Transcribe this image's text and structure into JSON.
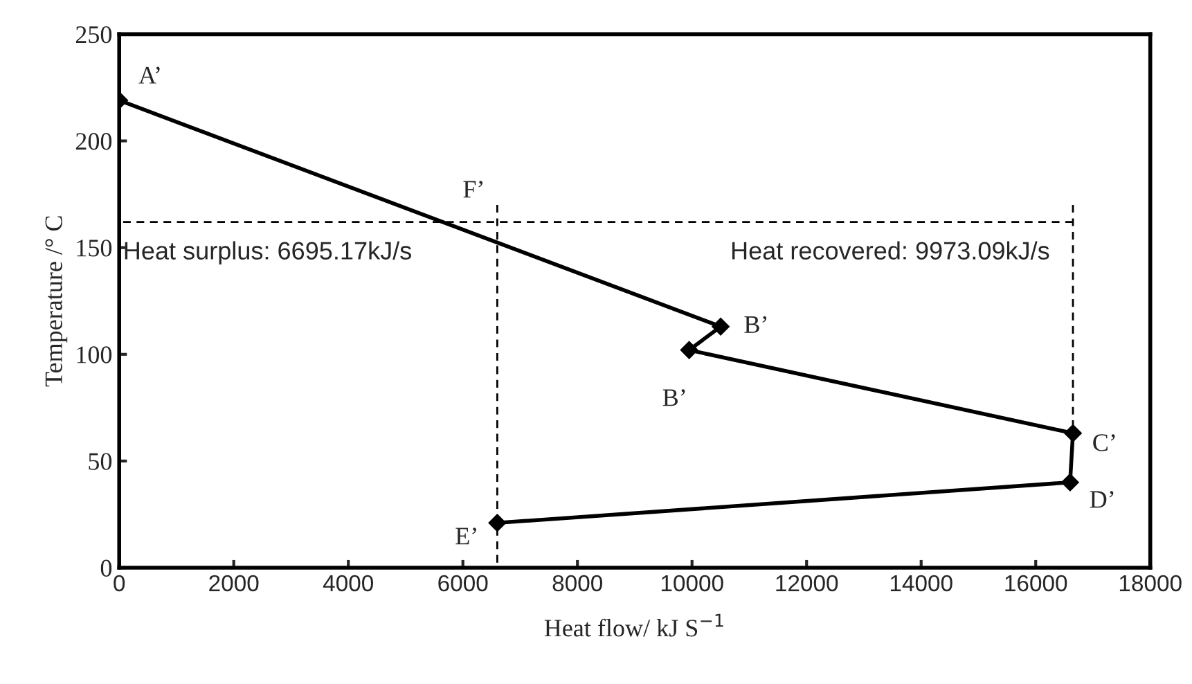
{
  "chart_data": {
    "type": "line",
    "xlabel": "Heat flow/ kJ S$^{−1}$",
    "ylabel": "Temperature /° C",
    "xlim": [
      0,
      18000
    ],
    "ylim": [
      0,
      250
    ],
    "xticks": [
      0,
      2000,
      4000,
      6000,
      8000,
      10000,
      12000,
      14000,
      16000,
      18000
    ],
    "yticks": [
      0,
      50,
      100,
      150,
      200,
      250
    ],
    "grid": false,
    "legend": false,
    "series": [
      {
        "color": "#000000",
        "x": [
          0,
          10500,
          9950,
          16650,
          16600,
          6600
        ],
        "values": [
          219,
          113,
          102,
          63,
          40,
          21
        ],
        "marker": "diamond",
        "line_style": "solid"
      },
      {
        "color": "#000000",
        "x": [
          0,
          16650
        ],
        "values": [
          162,
          162
        ],
        "marker": "none",
        "line_style": "dashed"
      },
      {
        "color": "#000000",
        "x": [
          6600,
          6600
        ],
        "values": [
          0,
          170
        ],
        "marker": "none",
        "line_style": "dashed"
      },
      {
        "color": "#000000",
        "x": [
          16650,
          16650
        ],
        "values": [
          63,
          170
        ],
        "marker": "none",
        "line_style": "dashed"
      }
    ],
    "annotations": [
      {
        "text": "A’",
        "x": 0,
        "y": 219
      },
      {
        "text": "B’",
        "x": 10500,
        "y": 113
      },
      {
        "text": "B’",
        "x": 9950,
        "y": 102
      },
      {
        "text": "C’",
        "x": 16650,
        "y": 63
      },
      {
        "text": "D’",
        "x": 16600,
        "y": 40
      },
      {
        "text": "E’",
        "x": 6600,
        "y": 21
      },
      {
        "text": "F’",
        "x": 6600,
        "y": 162
      },
      {
        "text": "Heat surplus: 6695.17kJ/s",
        "x": 0,
        "y": 162
      },
      {
        "text": "Heat recovered: 9973.09kJ/s",
        "x": 16650,
        "y": 162
      }
    ]
  }
}
